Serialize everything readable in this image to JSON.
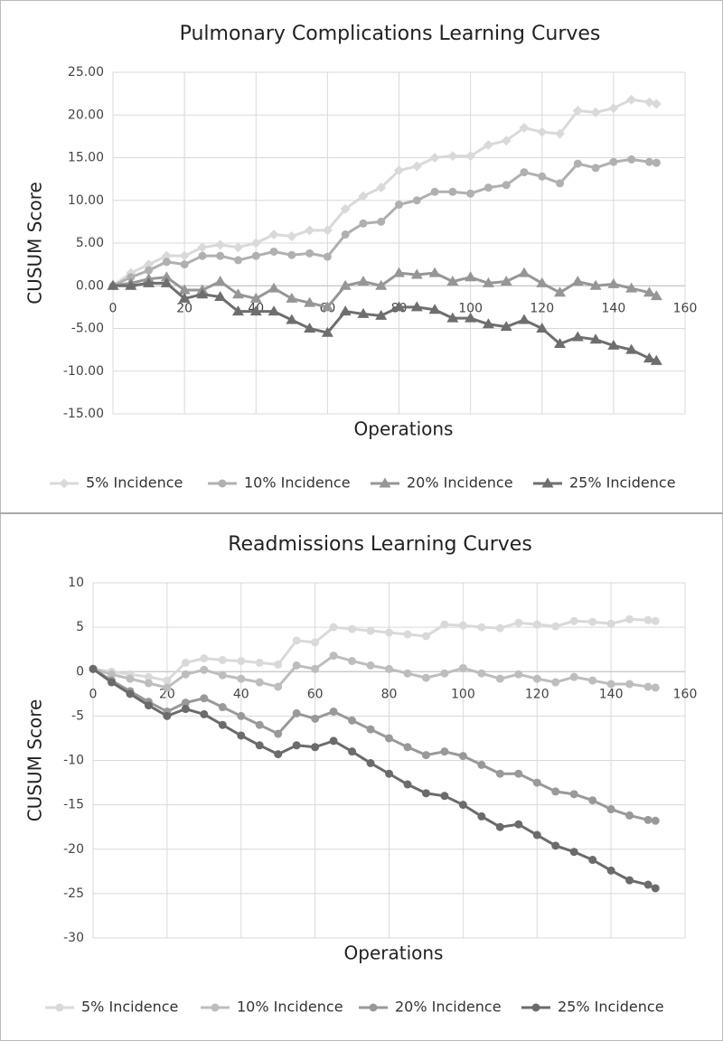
{
  "chart_data": [
    {
      "type": "line",
      "title": "Pulmonary Complications Learning Curves",
      "x_label": "Operations",
      "y_label": "CUSUM Score",
      "x": [
        0,
        5,
        10,
        15,
        20,
        25,
        30,
        35,
        40,
        45,
        50,
        55,
        60,
        65,
        70,
        75,
        80,
        85,
        90,
        95,
        100,
        105,
        110,
        115,
        120,
        125,
        130,
        135,
        140,
        145,
        150,
        152
      ],
      "xlim": [
        0,
        160
      ],
      "xticks": [
        0,
        20,
        40,
        60,
        80,
        100,
        120,
        140,
        160
      ],
      "ylim": [
        -15,
        25
      ],
      "yticks": [
        {
          "value": -15,
          "label": "-15.00"
        },
        {
          "value": -10,
          "label": "-10.00"
        },
        {
          "value": -5,
          "label": "-5.00"
        },
        {
          "value": 0,
          "label": "0.00"
        },
        {
          "value": 5,
          "label": "5.00"
        },
        {
          "value": 10,
          "label": "10.00"
        },
        {
          "value": 15,
          "label": "15.00"
        },
        {
          "value": 20,
          "label": "20.00"
        },
        {
          "value": 25,
          "label": "25.00"
        }
      ],
      "grid": true,
      "legend": "bottom",
      "series": [
        {
          "name": "5% Incidence",
          "color": "#d9d9d9",
          "marker": "diamond",
          "values": [
            0,
            1.5,
            2.5,
            3.5,
            3.5,
            4.5,
            4.8,
            4.5,
            5,
            6,
            5.8,
            6.5,
            6.5,
            9,
            10.5,
            11.5,
            13.5,
            14,
            15,
            15.2,
            15.2,
            16.5,
            17,
            18.5,
            18,
            17.8,
            20.5,
            20.3,
            20.8,
            21.8,
            21.5,
            21.3
          ]
        },
        {
          "name": "10% Incidence",
          "color": "#b0b0b0",
          "marker": "circle",
          "values": [
            0,
            1,
            1.8,
            2.8,
            2.5,
            3.5,
            3.5,
            3,
            3.5,
            4,
            3.6,
            3.8,
            3.4,
            6,
            7.3,
            7.5,
            9.5,
            10,
            11,
            11,
            10.8,
            11.5,
            11.8,
            13.3,
            12.8,
            12,
            14.3,
            13.8,
            14.5,
            14.8,
            14.5,
            14.4
          ]
        },
        {
          "name": "20% Incidence",
          "color": "#969696",
          "marker": "triangle",
          "values": [
            0,
            0.3,
            0.8,
            1,
            -0.5,
            -0.5,
            0.5,
            -1,
            -1.5,
            -0.3,
            -1.5,
            -2,
            -2.5,
            0,
            0.5,
            0,
            1.5,
            1.3,
            1.5,
            0.5,
            1,
            0.3,
            0.5,
            1.5,
            0.3,
            -0.8,
            0.5,
            0,
            0.2,
            -0.3,
            -0.8,
            -1.2
          ]
        },
        {
          "name": "25% Incidence",
          "color": "#6e6e6e",
          "marker": "triangle",
          "values": [
            0,
            0,
            0.3,
            0.3,
            -1.5,
            -1,
            -1.3,
            -3,
            -3,
            -3,
            -4,
            -5,
            -5.5,
            -3,
            -3.3,
            -3.5,
            -2.5,
            -2.5,
            -2.8,
            -3.8,
            -3.8,
            -4.5,
            -4.8,
            -4,
            -5,
            -6.8,
            -6,
            -6.3,
            -7,
            -7.5,
            -8.5,
            -8.8
          ]
        }
      ]
    },
    {
      "type": "line",
      "title": "Readmissions Learning Curves",
      "x_label": "Operations",
      "y_label": "CUSUM Score",
      "x": [
        0,
        5,
        10,
        15,
        20,
        25,
        30,
        35,
        40,
        45,
        50,
        55,
        60,
        65,
        70,
        75,
        80,
        85,
        90,
        95,
        100,
        105,
        110,
        115,
        120,
        125,
        130,
        135,
        140,
        145,
        150,
        152
      ],
      "xlim": [
        0,
        160
      ],
      "xticks": [
        0,
        20,
        40,
        60,
        80,
        100,
        120,
        140,
        160
      ],
      "ylim": [
        -30,
        10
      ],
      "yticks": [
        -30,
        -25,
        -20,
        -15,
        -10,
        -5,
        0,
        5,
        10
      ],
      "grid": true,
      "legend": "bottom",
      "series": [
        {
          "name": "5% Incidence",
          "color": "#d9d9d9",
          "marker": "circle",
          "values": [
            0.3,
            0,
            -0.3,
            -0.6,
            -1,
            1,
            1.5,
            1.3,
            1.2,
            1,
            0.8,
            3.5,
            3.3,
            5,
            4.8,
            4.6,
            4.4,
            4.2,
            4,
            5.3,
            5.2,
            5,
            4.9,
            5.5,
            5.3,
            5.1,
            5.7,
            5.6,
            5.4,
            5.9,
            5.8,
            5.7
          ]
        },
        {
          "name": "10% Incidence",
          "color": "#bdbdbd",
          "marker": "circle",
          "values": [
            0.3,
            -0.3,
            -0.8,
            -1.3,
            -1.8,
            -0.3,
            0.2,
            -0.4,
            -0.8,
            -1.2,
            -1.7,
            0.7,
            0.3,
            1.8,
            1.2,
            0.7,
            0.3,
            -0.2,
            -0.7,
            -0.2,
            0.4,
            -0.2,
            -0.8,
            -0.3,
            -0.8,
            -1.2,
            -0.6,
            -1,
            -1.4,
            -1.4,
            -1.7,
            -1.8
          ]
        },
        {
          "name": "20% Incidence",
          "color": "#999999",
          "marker": "circle",
          "values": [
            0.3,
            -1,
            -2.2,
            -3.4,
            -4.5,
            -3.5,
            -3,
            -4,
            -5,
            -6,
            -7,
            -4.7,
            -5.3,
            -4.5,
            -5.5,
            -6.5,
            -7.5,
            -8.5,
            -9.4,
            -9,
            -9.5,
            -10.5,
            -11.5,
            -11.5,
            -12.5,
            -13.5,
            -13.8,
            -14.5,
            -15.5,
            -16.2,
            -16.7,
            -16.8
          ]
        },
        {
          "name": "25% Incidence",
          "color": "#6b6b6b",
          "marker": "circle",
          "values": [
            0.3,
            -1.2,
            -2.5,
            -3.8,
            -5,
            -4.2,
            -4.8,
            -6,
            -7.2,
            -8.3,
            -9.3,
            -8.3,
            -8.5,
            -7.8,
            -9,
            -10.3,
            -11.5,
            -12.7,
            -13.7,
            -14,
            -15,
            -16.3,
            -17.5,
            -17.2,
            -18.4,
            -19.6,
            -20.3,
            -21.2,
            -22.4,
            -23.5,
            -24,
            -24.4
          ]
        }
      ]
    }
  ]
}
